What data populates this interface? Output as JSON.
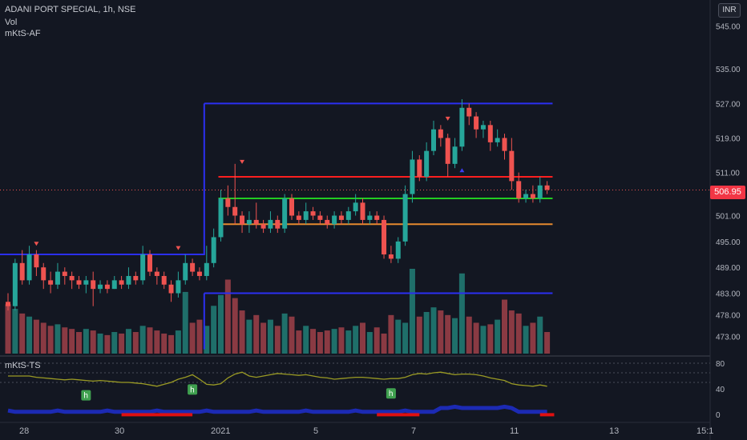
{
  "header": {
    "symbol_line": "ADANI PORT SPECIAL, 1h, NSE",
    "indicator_vol": "Vol",
    "indicator_af": "mKtS-AF",
    "indicator_ts": "mKtS-TS",
    "currency": "INR"
  },
  "price": {
    "last_label": "506.95",
    "last": 506.95
  },
  "colors": {
    "up": "#26a69a",
    "down": "#ef5350",
    "vol_up": "#1f6f6a",
    "vol_down": "#8a3a43",
    "blue_level": "#2b2ff2",
    "red_level": "#ff1f1f",
    "green_level": "#22cc22",
    "orange_level": "#e68a2e",
    "ts_line": "#9a9a24",
    "tag_bg": "#f23645",
    "background": "#131722"
  },
  "chart_data": {
    "type": "candlestick",
    "title": "ADANI PORT SPECIAL, 1h, NSE",
    "price_axis": {
      "ticks": [
        "545.00",
        "535.00",
        "527.00",
        "519.00",
        "511.00",
        "501.00",
        "495.00",
        "489.00",
        "483.00",
        "478.00",
        "473.00"
      ],
      "range": [
        469,
        551
      ]
    },
    "time_axis": {
      "ticks": [
        "28",
        "30",
        "2021",
        "5",
        "7",
        "11",
        "13",
        "15:1"
      ]
    },
    "candles": [
      [
        481,
        480,
        483,
        479
      ],
      [
        480,
        490,
        491,
        479
      ],
      [
        490,
        486,
        493,
        485
      ],
      [
        486,
        492,
        494,
        485
      ],
      [
        492,
        489,
        493,
        487
      ],
      [
        489,
        486,
        490,
        484
      ],
      [
        486,
        485,
        488,
        483
      ],
      [
        485,
        488,
        490,
        484
      ],
      [
        488,
        487,
        489,
        485
      ],
      [
        487,
        486,
        488,
        484
      ],
      [
        486,
        485,
        487,
        484
      ],
      [
        485,
        486,
        487,
        483
      ],
      [
        486,
        484,
        488,
        480
      ],
      [
        484,
        485,
        486,
        483
      ],
      [
        485,
        484,
        486,
        483
      ],
      [
        484,
        486,
        487,
        484
      ],
      [
        486,
        485,
        487,
        484
      ],
      [
        485,
        487,
        489,
        484
      ],
      [
        487,
        486,
        488,
        485
      ],
      [
        486,
        492,
        494,
        485
      ],
      [
        492,
        488,
        493,
        487
      ],
      [
        488,
        487,
        489,
        485
      ],
      [
        487,
        485,
        488,
        484
      ],
      [
        485,
        483,
        486,
        481
      ],
      [
        483,
        486,
        488,
        482
      ],
      [
        486,
        490,
        492,
        485
      ],
      [
        490,
        488,
        491,
        487
      ],
      [
        488,
        487,
        489,
        486
      ],
      [
        487,
        490,
        494,
        486
      ],
      [
        490,
        496,
        498,
        489
      ],
      [
        496,
        505,
        507,
        495
      ],
      [
        505,
        503,
        508,
        501
      ],
      [
        503,
        501,
        513,
        499
      ],
      [
        501,
        499,
        502,
        497
      ],
      [
        499,
        500,
        502,
        497
      ],
      [
        500,
        499,
        504,
        498
      ],
      [
        499,
        498,
        500,
        497
      ],
      [
        498,
        500,
        502,
        497
      ],
      [
        500,
        498,
        501,
        497
      ],
      [
        498,
        505,
        506,
        497
      ],
      [
        505,
        501,
        506,
        500
      ],
      [
        501,
        500,
        502,
        499
      ],
      [
        500,
        502,
        504,
        499
      ],
      [
        502,
        501,
        503,
        500
      ],
      [
        501,
        500,
        502,
        499
      ],
      [
        500,
        499,
        501,
        498
      ],
      [
        499,
        501,
        502,
        498
      ],
      [
        501,
        500,
        502,
        499
      ],
      [
        500,
        502,
        503,
        499
      ],
      [
        502,
        504,
        506,
        501
      ],
      [
        504,
        500,
        505,
        499
      ],
      [
        500,
        501,
        502,
        499
      ],
      [
        501,
        500,
        502,
        499
      ],
      [
        500,
        492,
        501,
        491
      ],
      [
        492,
        491,
        494,
        490
      ],
      [
        491,
        495,
        496,
        490
      ],
      [
        495,
        506,
        508,
        494
      ],
      [
        506,
        514,
        516,
        504
      ],
      [
        514,
        510,
        515,
        509
      ],
      [
        510,
        516,
        518,
        509
      ],
      [
        516,
        521,
        523,
        515
      ],
      [
        521,
        519,
        522,
        517
      ],
      [
        519,
        513,
        520,
        510
      ],
      [
        513,
        517,
        519,
        512
      ],
      [
        517,
        526,
        528,
        516
      ],
      [
        526,
        524,
        527,
        522
      ],
      [
        524,
        521,
        525,
        519
      ],
      [
        521,
        522,
        523,
        519
      ],
      [
        522,
        518,
        523,
        516
      ],
      [
        518,
        519,
        521,
        517
      ],
      [
        519,
        516,
        520,
        514
      ],
      [
        516,
        509,
        519,
        507
      ],
      [
        509,
        505,
        511,
        504
      ],
      [
        505,
        506,
        507,
        504
      ],
      [
        506,
        505,
        508,
        504
      ],
      [
        505,
        508,
        510,
        504
      ],
      [
        508,
        507,
        509,
        506
      ]
    ],
    "volume": [
      32,
      29,
      26,
      24,
      22,
      20,
      18,
      19,
      17,
      16,
      14,
      16,
      15,
      13,
      12,
      14,
      13,
      16,
      14,
      18,
      17,
      15,
      13,
      12,
      15,
      40,
      20,
      22,
      18,
      31,
      38,
      48,
      36,
      28,
      22,
      25,
      20,
      22,
      18,
      26,
      24,
      15,
      18,
      16,
      14,
      15,
      16,
      17,
      15,
      18,
      20,
      14,
      17,
      13,
      25,
      22,
      20,
      55,
      24,
      27,
      30,
      28,
      25,
      23,
      52,
      24,
      20,
      18,
      19,
      22,
      35,
      28,
      26,
      18,
      20,
      24,
      14
    ],
    "levels": [
      {
        "name": "blue_resistance",
        "segments": [
          [
            0,
            15,
            492
          ],
          [
            15,
            28,
            492
          ],
          [
            28,
            77,
            527
          ]
        ]
      },
      {
        "name": "blue_support",
        "segments": [
          [
            28,
            77,
            483
          ]
        ]
      },
      {
        "name": "red_level",
        "segments": [
          [
            30,
            77,
            510
          ]
        ]
      },
      {
        "name": "green_level",
        "segments": [
          [
            30,
            77,
            505
          ]
        ]
      },
      {
        "name": "orange_level",
        "segments": [
          [
            30,
            77,
            499
          ]
        ]
      }
    ],
    "osc": {
      "ticks": [
        "80",
        "40",
        "0"
      ],
      "range": [
        -10,
        90
      ],
      "ts_line": [
        60,
        60,
        60,
        60,
        58,
        57,
        56,
        55,
        54,
        55,
        54,
        53,
        52,
        53,
        52,
        51,
        50,
        50,
        49,
        48,
        46,
        44,
        47,
        50,
        55,
        58,
        62,
        55,
        47,
        46,
        48,
        57,
        63,
        66,
        60,
        58,
        60,
        62,
        64,
        63,
        62,
        61,
        62,
        60,
        58,
        57,
        55,
        56,
        57,
        58,
        58,
        57,
        56,
        55,
        56,
        56,
        58,
        62,
        64,
        63,
        65,
        66,
        64,
        62,
        63,
        63,
        62,
        60,
        57,
        55,
        53,
        48,
        46,
        45,
        44,
        46,
        44
      ],
      "markers": [
        {
          "i": 11,
          "label": "h"
        },
        {
          "i": 26,
          "label": "h"
        },
        {
          "i": 54,
          "label": "h"
        }
      ]
    }
  }
}
